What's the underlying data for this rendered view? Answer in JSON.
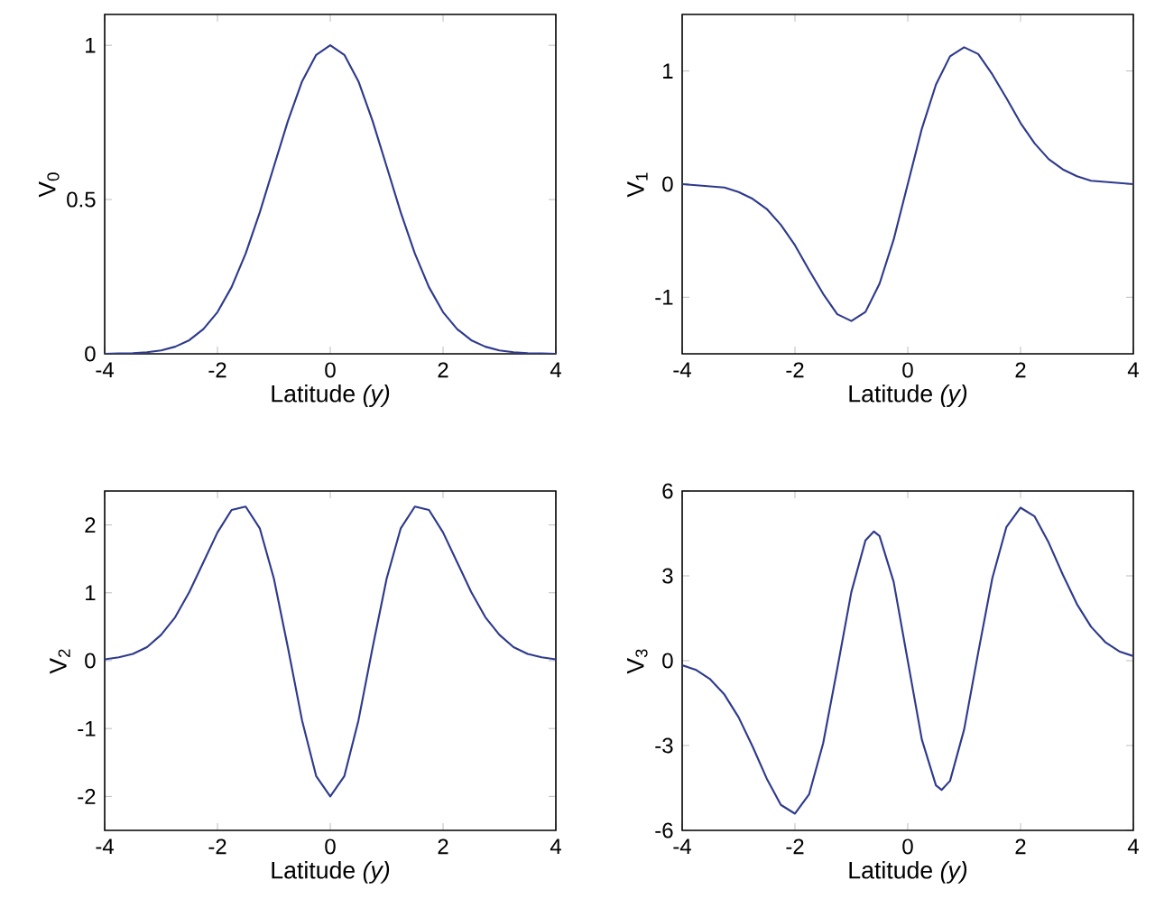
{
  "chart_data": [
    {
      "type": "line",
      "xlabel": "Latitude *(y)*",
      "ylabel": "V$_{0}$",
      "x": [
        -4,
        -3.75,
        -3.5,
        -3.25,
        -3,
        -2.75,
        -2.5,
        -2.25,
        -2,
        -1.75,
        -1.5,
        -1.25,
        -1,
        -0.75,
        -0.5,
        -0.25,
        0,
        0.25,
        0.5,
        0.75,
        1,
        1.25,
        1.5,
        1.75,
        2,
        2.25,
        2.5,
        2.75,
        3,
        3.25,
        3.5,
        3.75,
        4
      ],
      "series": [
        {
          "color": "#2e3a8c",
          "values": [
            0.0,
            0.001,
            0.002,
            0.005,
            0.011,
            0.023,
            0.044,
            0.08,
            0.135,
            0.216,
            0.325,
            0.458,
            0.607,
            0.755,
            0.883,
            0.969,
            1.0,
            0.969,
            0.883,
            0.755,
            0.607,
            0.458,
            0.325,
            0.216,
            0.135,
            0.08,
            0.044,
            0.023,
            0.011,
            0.005,
            0.002,
            0.001,
            0.0
          ]
        }
      ],
      "xlim": [
        -4,
        4
      ],
      "ylim": [
        0,
        1.1
      ],
      "xticks": [
        -4,
        -2,
        0,
        2,
        4
      ],
      "yticks": [
        0,
        0.5,
        1
      ]
    },
    {
      "type": "line",
      "xlabel": "Latitude *(y)*",
      "ylabel": "V$_{1}$",
      "x": [
        -4,
        -3.75,
        -3.5,
        -3.25,
        -3,
        -2.75,
        -2.5,
        -2.25,
        -2,
        -1.75,
        -1.5,
        -1.25,
        -1,
        -0.75,
        -0.5,
        -0.25,
        0,
        0.25,
        0.5,
        0.75,
        1,
        1.25,
        1.5,
        1.75,
        2,
        2.25,
        2.5,
        2.75,
        3,
        3.25,
        3.5,
        3.75,
        4
      ],
      "series": [
        {
          "color": "#2e3a8c",
          "values": [
            0,
            -0.01,
            -0.02,
            -0.03,
            -0.07,
            -0.13,
            -0.22,
            -0.36,
            -0.54,
            -0.76,
            -0.97,
            -1.15,
            -1.21,
            -1.13,
            -0.88,
            -0.49,
            0,
            0.49,
            0.88,
            1.13,
            1.21,
            1.15,
            0.97,
            0.76,
            0.54,
            0.36,
            0.22,
            0.13,
            0.07,
            0.03,
            0.02,
            0.01,
            0
          ]
        }
      ],
      "xlim": [
        -4,
        4
      ],
      "ylim": [
        -1.5,
        1.5
      ],
      "xticks": [
        -4,
        -2,
        0,
        2,
        4
      ],
      "yticks": [
        -1,
        0,
        1
      ]
    },
    {
      "type": "line",
      "xlabel": "Latitude *(y)*",
      "ylabel": "V$_{2}$",
      "x": [
        -4,
        -3.75,
        -3.5,
        -3.25,
        -3,
        -2.75,
        -2.5,
        -2.25,
        -2,
        -1.75,
        -1.5,
        -1.25,
        -1,
        -0.75,
        -0.5,
        -0.25,
        0,
        0.25,
        0.5,
        0.75,
        1,
        1.25,
        1.5,
        1.75,
        2,
        2.25,
        2.5,
        2.75,
        3,
        3.25,
        3.5,
        3.75,
        4
      ],
      "series": [
        {
          "color": "#2e3a8c",
          "values": [
            0.02,
            0.05,
            0.1,
            0.2,
            0.38,
            0.64,
            1.01,
            1.45,
            1.89,
            2.22,
            2.27,
            1.95,
            1.21,
            0.19,
            -0.88,
            -1.7,
            -2.0,
            -1.7,
            -0.88,
            0.19,
            1.21,
            1.95,
            2.27,
            2.22,
            1.89,
            1.45,
            1.01,
            0.64,
            0.38,
            0.2,
            0.1,
            0.05,
            0.02
          ]
        }
      ],
      "xlim": [
        -4,
        4
      ],
      "ylim": [
        -2.5,
        2.5
      ],
      "xticks": [
        -4,
        -2,
        0,
        2,
        4
      ],
      "yticks": [
        -2,
        -1,
        0,
        1,
        2
      ]
    },
    {
      "type": "line",
      "xlabel": "Latitude *(y)*",
      "ylabel": "V$_{3}$",
      "x": [
        -4,
        -3.75,
        -3.5,
        -3.25,
        -3,
        -2.75,
        -2.5,
        -2.25,
        -2,
        -1.75,
        -1.5,
        -1.25,
        -1,
        -0.75,
        -0.6,
        -0.5,
        -0.25,
        0,
        0.25,
        0.5,
        0.6,
        0.75,
        1,
        1.25,
        1.5,
        1.75,
        2,
        2.25,
        2.5,
        2.75,
        3,
        3.25,
        3.5,
        3.75,
        4
      ],
      "series": [
        {
          "color": "#2e3a8c",
          "values": [
            -0.16,
            -0.33,
            -0.66,
            -1.2,
            -2.0,
            -3.04,
            -4.17,
            -5.1,
            -5.41,
            -4.73,
            -2.92,
            -0.29,
            2.43,
            4.25,
            4.57,
            4.41,
            2.79,
            0,
            -2.79,
            -4.41,
            -4.57,
            -4.25,
            -2.43,
            0.29,
            2.92,
            4.73,
            5.41,
            5.1,
            4.17,
            3.04,
            2.0,
            1.2,
            0.66,
            0.33,
            0.16
          ]
        }
      ],
      "xlim": [
        -4,
        4
      ],
      "ylim": [
        -6,
        6
      ],
      "xticks": [
        -4,
        -2,
        0,
        2,
        4
      ],
      "yticks": [
        -6,
        -3,
        0,
        3,
        6
      ]
    }
  ]
}
